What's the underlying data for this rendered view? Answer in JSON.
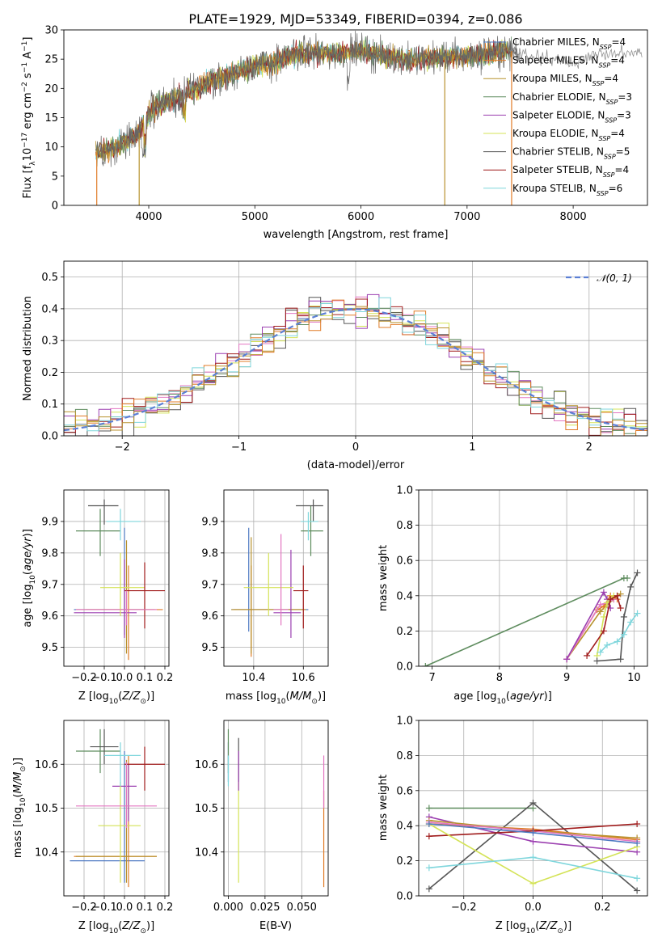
{
  "figure": {
    "title": "PLATE=1929, MJD=53349, FIBERID=0394, z=0.086"
  },
  "colors": {
    "chabrier_miles": "#4e79c2",
    "salpeter_miles": "#e07b27",
    "kroupa_miles": "#b8922e",
    "chabrier_elodie": "#5e8c5e",
    "salpeter_elodie": "#9b3fb0",
    "kroupa_elodie": "#d4e357",
    "chabrier_stelib": "#555555",
    "salpeter_stelib": "#a01c1c",
    "kroupa_stelib": "#7fd6dc",
    "pink": "#e377c2",
    "normal_curve": "#5b7fd4",
    "grid": "#b0b0b0"
  },
  "chart_data": [
    {
      "id": "spectrum",
      "type": "line",
      "xlabel": "wavelength [Angstrom, rest frame]",
      "ylabel": "Flux [f_λ10^−17 erg cm^−2 s^−1 A^−1]",
      "xlim": [
        3200,
        8700
      ],
      "ylim": [
        0,
        30
      ],
      "xticks": [
        4000,
        5000,
        6000,
        7000,
        8000
      ],
      "yticks": [
        0,
        5,
        10,
        15,
        20,
        25,
        30
      ],
      "grid": false,
      "legend_position": "right",
      "legend": [
        "Chabrier MILES, N_SSP=4",
        "Salpeter MILES, N_SSP=4",
        "Kroupa MILES, N_SSP=4",
        "Chabrier ELODIE, N_SSP=3",
        "Salpeter ELODIE, N_SSP=3",
        "Kroupa ELODIE, N_SSP=4",
        "Chabrier STELIB, N_SSP=5",
        "Salpeter STELIB, N_SSP=4",
        "Kroupa STELIB, N_SSP=6"
      ],
      "continuum": {
        "x": [
          3500,
          3700,
          3900,
          4000,
          4200,
          4400,
          4600,
          4800,
          5000,
          5200,
          5400,
          5600,
          5800,
          6000,
          6200,
          6400,
          6600,
          6800,
          7000,
          7200,
          7400,
          7600,
          7800,
          8000,
          8200,
          8400
        ],
        "y": [
          9,
          10,
          12,
          16,
          18,
          19.5,
          21.5,
          22.5,
          24,
          24.5,
          26,
          26,
          26,
          26.5,
          25.5,
          25,
          25,
          25.5,
          25.5,
          26,
          26.5,
          25.5,
          25,
          24,
          26,
          26
        ]
      }
    },
    {
      "id": "residuals",
      "type": "histogram",
      "xlabel": "(data-model)/error",
      "ylabel": "Normed distribution",
      "xlim": [
        -2.5,
        2.5
      ],
      "ylim": [
        0,
        0.55
      ],
      "xticks": [
        -2,
        -1,
        0,
        1,
        2
      ],
      "yticks": [
        0.0,
        0.1,
        0.2,
        0.3,
        0.4,
        0.5
      ],
      "grid": true,
      "legend_position": "top-right",
      "legend": [
        "𝒩(0, 1)"
      ],
      "bin_width": 0.1
    },
    {
      "id": "z_age",
      "type": "errorbar",
      "xlabel": "Z [log10(Z/Z⊙)]",
      "ylabel": "age  [log10(age/yr)]",
      "xlim": [
        -0.3,
        0.22
      ],
      "ylim": [
        9.44,
        10.0
      ],
      "xticks": [
        -0.2,
        -0.1,
        0.0,
        0.1,
        0.2
      ],
      "yticks": [
        9.5,
        9.6,
        9.7,
        9.8,
        9.9
      ],
      "grid": true,
      "points": [
        {
          "c": "chabrier_miles",
          "x": 0.0,
          "y": 9.62,
          "xerr": [
            0.25,
            0.1
          ],
          "yerr": [
            0.08,
            0.26
          ]
        },
        {
          "c": "salpeter_miles",
          "x": 0.02,
          "y": 9.62,
          "xerr": [
            0.26,
            0.17
          ],
          "yerr": [
            0.16,
            0.14
          ]
        },
        {
          "c": "kroupa_miles",
          "x": 0.01,
          "y": 9.62,
          "xerr": [
            0.2,
            0.14
          ],
          "yerr": [
            0.14,
            0.22
          ]
        },
        {
          "c": "chabrier_elodie",
          "x": -0.12,
          "y": 9.87,
          "xerr": [
            0.12,
            0.1
          ],
          "yerr": [
            0.08,
            0.07
          ]
        },
        {
          "c": "salpeter_elodie",
          "x": 0.0,
          "y": 9.61,
          "xerr": [
            0.25,
            0.06
          ],
          "yerr": [
            0.08,
            0.17
          ]
        },
        {
          "c": "kroupa_elodie",
          "x": -0.02,
          "y": 9.69,
          "xerr": [
            0.1,
            0.12
          ],
          "yerr": [
            0.09,
            0.11
          ]
        },
        {
          "c": "chabrier_stelib",
          "x": -0.1,
          "y": 9.95,
          "xerr": [
            0.08,
            0.07
          ],
          "yerr": [
            0.06,
            0.02
          ]
        },
        {
          "c": "salpeter_stelib",
          "x": 0.1,
          "y": 9.68,
          "xerr": [
            0.1,
            0.1
          ],
          "yerr": [
            0.12,
            0.09
          ]
        },
        {
          "c": "kroupa_stelib",
          "x": -0.02,
          "y": 9.9,
          "xerr": [
            0.07,
            0.1
          ],
          "yerr": [
            0.06,
            0.04
          ]
        },
        {
          "c": "pink",
          "x": 0.01,
          "y": 9.62,
          "xerr": [
            0.25,
            0.15
          ],
          "yerr": [
            0.05,
            0.06
          ]
        }
      ]
    },
    {
      "id": "mass_age",
      "type": "errorbar",
      "xlabel": "mass [log10(M/M⊙)]",
      "ylabel": "",
      "xlim": [
        10.28,
        10.7
      ],
      "ylim": [
        9.44,
        10.0
      ],
      "xticks": [
        10.4,
        10.6
      ],
      "yticks": [
        9.5,
        9.6,
        9.7,
        9.8,
        9.9
      ],
      "grid": true,
      "points": [
        {
          "c": "chabrier_miles",
          "x": 10.38,
          "y": 9.62,
          "xerr": [
            0.07,
            0.24
          ],
          "yerr": [
            0.07,
            0.26
          ]
        },
        {
          "c": "salpeter_miles",
          "x": 10.39,
          "y": 9.62,
          "xerr": [
            0.07,
            0.21
          ],
          "yerr": [
            0.15,
            0.14
          ]
        },
        {
          "c": "kroupa_miles",
          "x": 10.39,
          "y": 9.62,
          "xerr": [
            0.08,
            0.22
          ],
          "yerr": [
            0.14,
            0.23
          ]
        },
        {
          "c": "chabrier_elodie",
          "x": 10.63,
          "y": 9.87,
          "xerr": [
            0.04,
            0.05
          ],
          "yerr": [
            0.08,
            0.08
          ]
        },
        {
          "c": "salpeter_elodie",
          "x": 10.55,
          "y": 9.61,
          "xerr": [
            0.07,
            0.04
          ],
          "yerr": [
            0.08,
            0.2
          ]
        },
        {
          "c": "kroupa_elodie",
          "x": 10.46,
          "y": 9.69,
          "xerr": [
            0.1,
            0.1
          ],
          "yerr": [
            0.09,
            0.11
          ]
        },
        {
          "c": "chabrier_stelib",
          "x": 10.64,
          "y": 9.95,
          "xerr": [
            0.07,
            0.04
          ],
          "yerr": [
            0.05,
            0.02
          ]
        },
        {
          "c": "salpeter_stelib",
          "x": 10.6,
          "y": 9.68,
          "xerr": [
            0.04,
            0.02
          ],
          "yerr": [
            0.12,
            0.08
          ]
        },
        {
          "c": "kroupa_stelib",
          "x": 10.62,
          "y": 9.9,
          "xerr": [
            0.03,
            0.04
          ],
          "yerr": [
            0.06,
            0.03
          ]
        },
        {
          "c": "pink",
          "x": 10.51,
          "y": 9.62,
          "xerr": [
            0.03,
            0.03
          ],
          "yerr": [
            0.05,
            0.24
          ]
        }
      ]
    },
    {
      "id": "age_weight",
      "type": "line",
      "xlabel": "age  [log10(age/yr)]",
      "ylabel": "mass weight",
      "xlim": [
        6.8,
        10.2
      ],
      "ylim": [
        0.0,
        1.0
      ],
      "xticks": [
        7,
        8,
        9,
        10
      ],
      "yticks": [
        0.0,
        0.2,
        0.4,
        0.6,
        0.8,
        1.0
      ],
      "grid": true,
      "series": [
        {
          "c": "chabrier_elodie",
          "x": [
            6.9,
            9.85,
            9.9
          ],
          "y": [
            0.0,
            0.5,
            0.5
          ]
        },
        {
          "c": "kroupa_miles",
          "x": [
            9.0,
            9.5,
            9.6,
            9.7,
            9.8
          ],
          "y": [
            0.04,
            0.31,
            0.35,
            0.38,
            0.41
          ]
        },
        {
          "c": "salpeter_miles",
          "x": [
            9.0,
            9.45,
            9.55,
            9.65,
            9.75
          ],
          "y": [
            0.04,
            0.32,
            0.34,
            0.4,
            0.38
          ]
        },
        {
          "c": "pink",
          "x": [
            9.0,
            9.5,
            9.6,
            9.7
          ],
          "y": [
            0.04,
            0.35,
            0.36,
            0.38
          ]
        },
        {
          "c": "salpeter_elodie",
          "x": [
            9.0,
            9.55,
            9.6,
            9.65
          ],
          "y": [
            0.04,
            0.42,
            0.38,
            0.33
          ]
        },
        {
          "c": "kroupa_elodie",
          "x": [
            9.45,
            9.55,
            9.6,
            9.7
          ],
          "y": [
            0.06,
            0.28,
            0.36,
            0.4
          ]
        },
        {
          "c": "salpeter_stelib",
          "x": [
            9.3,
            9.55,
            9.65,
            9.75,
            9.8
          ],
          "y": [
            0.06,
            0.2,
            0.38,
            0.4,
            0.33
          ]
        },
        {
          "c": "chabrier_stelib",
          "x": [
            9.45,
            9.8,
            9.85,
            9.95,
            10.05
          ],
          "y": [
            0.03,
            0.04,
            0.28,
            0.45,
            0.53
          ]
        },
        {
          "c": "kroupa_stelib",
          "x": [
            9.5,
            9.6,
            9.75,
            9.85,
            9.95,
            10.05
          ],
          "y": [
            0.08,
            0.12,
            0.14,
            0.18,
            0.25,
            0.3
          ]
        }
      ]
    },
    {
      "id": "z_mass",
      "type": "errorbar",
      "xlabel": "Z [log10(Z/Z⊙)]",
      "ylabel": "mass [log10(M/M⊙)]",
      "xlim": [
        -0.3,
        0.22
      ],
      "ylim": [
        10.3,
        10.7
      ],
      "xticks": [
        -0.2,
        -0.1,
        0.0,
        0.1,
        0.2
      ],
      "yticks": [
        10.4,
        10.5,
        10.6
      ],
      "grid": true,
      "points": [
        {
          "c": "chabrier_miles",
          "x": 0.0,
          "y": 10.38,
          "xerr": [
            0.27,
            0.1
          ],
          "yerr": [
            0.05,
            0.25
          ]
        },
        {
          "c": "salpeter_miles",
          "x": 0.02,
          "y": 10.39,
          "xerr": [
            0.27,
            0.14
          ],
          "yerr": [
            0.07,
            0.23
          ]
        },
        {
          "c": "kroupa_miles",
          "x": 0.01,
          "y": 10.39,
          "xerr": [
            0.25,
            0.15
          ],
          "yerr": [
            0.06,
            0.22
          ]
        },
        {
          "c": "chabrier_elodie",
          "x": -0.12,
          "y": 10.63,
          "xerr": [
            0.12,
            0.1
          ],
          "yerr": [
            0.05,
            0.05
          ]
        },
        {
          "c": "salpeter_elodie",
          "x": 0.02,
          "y": 10.55,
          "xerr": [
            0.08,
            0.04
          ],
          "yerr": [
            0.08,
            0.05
          ]
        },
        {
          "c": "kroupa_elodie",
          "x": -0.02,
          "y": 10.46,
          "xerr": [
            0.11,
            0.1
          ],
          "yerr": [
            0.13,
            0.1
          ]
        },
        {
          "c": "chabrier_stelib",
          "x": -0.1,
          "y": 10.64,
          "xerr": [
            0.07,
            0.07
          ],
          "yerr": [
            0.04,
            0.04
          ]
        },
        {
          "c": "salpeter_stelib",
          "x": 0.1,
          "y": 10.6,
          "xerr": [
            0.1,
            0.1
          ],
          "yerr": [
            0.06,
            0.04
          ]
        },
        {
          "c": "kroupa_stelib",
          "x": -0.02,
          "y": 10.62,
          "xerr": [
            0.08,
            0.1
          ],
          "yerr": [
            0.07,
            0.03
          ]
        },
        {
          "c": "pink",
          "x": 0.01,
          "y": 10.505,
          "xerr": [
            0.25,
            0.15
          ],
          "yerr": [
            0.05,
            0.1
          ]
        }
      ]
    },
    {
      "id": "ebv_mass",
      "type": "errorbar",
      "xlabel": "E(B-V)",
      "ylabel": "",
      "xlim": [
        -0.003,
        0.068
      ],
      "ylim": [
        10.3,
        10.7
      ],
      "xticks": [
        0.0,
        0.025,
        0.05
      ],
      "xticklabels": [
        "0.000",
        "0.025",
        "0.050"
      ],
      "yticks": [
        10.4,
        10.5,
        10.6
      ],
      "grid": true,
      "points": [
        {
          "c": "chabrier_miles",
          "x": 0.0,
          "y": 10.6,
          "xerr": [
            0,
            0
          ],
          "yerr": [
            0.04,
            0.05
          ]
        },
        {
          "c": "chabrier_elodie",
          "x": 0.0,
          "y": 10.63,
          "xerr": [
            0,
            0
          ],
          "yerr": [
            0.05,
            0.05
          ]
        },
        {
          "c": "kroupa_stelib",
          "x": 0.0,
          "y": 10.6,
          "xerr": [
            0,
            0
          ],
          "yerr": [
            0.05,
            0.02
          ]
        },
        {
          "c": "kroupa_elodie",
          "x": 0.007,
          "y": 10.46,
          "xerr": [
            0,
            0
          ],
          "yerr": [
            0.13,
            0.1
          ]
        },
        {
          "c": "chabrier_stelib",
          "x": 0.007,
          "y": 10.6,
          "xerr": [
            0,
            0
          ],
          "yerr": [
            0.04,
            0.06
          ]
        },
        {
          "c": "salpeter_elodie",
          "x": 0.007,
          "y": 10.58,
          "xerr": [
            0,
            0
          ],
          "yerr": [
            0.04,
            0.05
          ]
        },
        {
          "c": "salpeter_miles",
          "x": 0.065,
          "y": 10.42,
          "xerr": [
            0,
            0
          ],
          "yerr": [
            0.1,
            0.12
          ]
        },
        {
          "c": "pink",
          "x": 0.065,
          "y": 10.55,
          "xerr": [
            0,
            0
          ],
          "yerr": [
            0.05,
            0.07
          ]
        }
      ]
    },
    {
      "id": "z_weight",
      "type": "line",
      "xlabel": "Z [log10(Z/Z⊙)]",
      "ylabel": "mass weight",
      "xlim": [
        -0.33,
        0.33
      ],
      "ylim": [
        0.0,
        1.0
      ],
      "xticks": [
        -0.2,
        0.0,
        0.2
      ],
      "yticks": [
        0.0,
        0.2,
        0.4,
        0.6,
        0.8,
        1.0
      ],
      "grid": true,
      "series": [
        {
          "c": "chabrier_elodie",
          "x": [
            -0.3,
            0.0
          ],
          "y": [
            0.5,
            0.5
          ]
        },
        {
          "c": "chabrier_stelib",
          "x": [
            -0.3,
            0.0,
            0.3
          ],
          "y": [
            0.04,
            0.53,
            0.03
          ]
        },
        {
          "c": "salpeter_elodie",
          "x": [
            -0.3,
            0.0,
            0.3
          ],
          "y": [
            0.45,
            0.31,
            0.25
          ]
        },
        {
          "c": "salpeter_miles",
          "x": [
            -0.3,
            0.0,
            0.3
          ],
          "y": [
            0.41,
            0.38,
            0.32
          ]
        },
        {
          "c": "kroupa_miles",
          "x": [
            -0.3,
            0.0,
            0.3
          ],
          "y": [
            0.43,
            0.37,
            0.33
          ]
        },
        {
          "c": "pink",
          "x": [
            -0.3,
            0.0,
            0.3
          ],
          "y": [
            0.42,
            0.37,
            0.31
          ]
        },
        {
          "c": "salpeter_stelib",
          "x": [
            -0.3,
            0.0,
            0.3
          ],
          "y": [
            0.34,
            0.37,
            0.41
          ]
        },
        {
          "c": "kroupa_elodie",
          "x": [
            -0.3,
            0.0,
            0.3
          ],
          "y": [
            0.41,
            0.07,
            0.28
          ]
        },
        {
          "c": "kroupa_stelib",
          "x": [
            -0.3,
            0.0,
            0.3
          ],
          "y": [
            0.16,
            0.22,
            0.1
          ]
        },
        {
          "c": "chabrier_miles",
          "x": [
            -0.3,
            0.0,
            0.3
          ],
          "y": [
            0.41,
            0.36,
            0.3
          ]
        }
      ]
    }
  ]
}
